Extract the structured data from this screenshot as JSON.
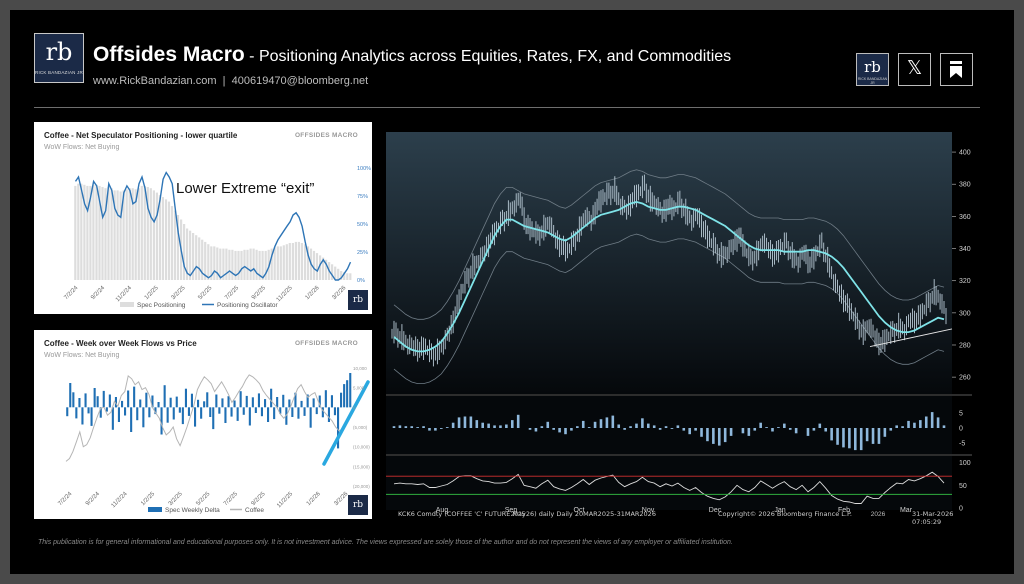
{
  "header": {
    "logo_text": "rb",
    "logo_caption": "RICK BANDAZIAN JR",
    "title_bold": "Offsides Macro",
    "title_rest": " - Positioning Analytics across Equities, Rates, FX, and Commodities",
    "website": "www.RickBandazian.com",
    "separator": "|",
    "email": "400619470@bloomberg.net",
    "icons": [
      "rb-logo-icon",
      "x-icon",
      "bookmark-icon"
    ]
  },
  "panel1": {
    "title": "Coffee - Net Speculator Positioning - lower quartile",
    "subtitle": "WoW Flows: Net Buying",
    "brand": "OFFSIDES MACRO",
    "annotation": "Lower Extreme “exit”",
    "logo_text": "rb"
  },
  "panel2": {
    "title": "Coffee - Week over Week Flows vs Price",
    "subtitle": "WoW Flows: Net Buying",
    "brand": "OFFSIDES MACRO",
    "logo_text": "rb"
  },
  "bloomberg": {
    "footer_left": "KCK6 Comdty (COFFEE 'C' FUTURE May26) daily Daily 20MAR2025-31MAR2026",
    "footer_mid": "Copyright© 2026 Bloomberg Finance L.P.",
    "footer_right": "31-Mar-2026 07:05:29"
  },
  "disclaimer": "This publication is for general informational and educational purposes only. It is not investment advice. The views expressed are solely those of the author and do not represent the views of any employer or affiliated institution.",
  "chart_data": [
    {
      "type": "bar",
      "title": "Coffee - Net Speculator Positioning - lower quartile",
      "x_ticks": [
        "7/2/24",
        "9/2/24",
        "11/2/24",
        "1/2/25",
        "3/2/25",
        "5/2/25",
        "7/2/25",
        "9/2/25",
        "11/2/25",
        "1/2/26",
        "3/2/26"
      ],
      "ylim": [
        0,
        100
      ],
      "y_ticks": [
        "0%",
        "25%",
        "50%",
        "75%",
        "100%"
      ],
      "legend": [
        "Spec Positioning",
        "Positioning Oscillator"
      ],
      "legend_position": "bottom",
      "series": [
        {
          "name": "Positioning Oscillator",
          "values": [
            88,
            92,
            80,
            68,
            62,
            74,
            88,
            84,
            70,
            56,
            62,
            86,
            80,
            64,
            58,
            56,
            78,
            84,
            80,
            68,
            70,
            86,
            92,
            82,
            64,
            56,
            52,
            58,
            72,
            90,
            96,
            92,
            86,
            64,
            42,
            26,
            12,
            6,
            4,
            8,
            12,
            10,
            6,
            4,
            2,
            4,
            8,
            6,
            2,
            4,
            6,
            8,
            6,
            4,
            6,
            10,
            12,
            10,
            8,
            10,
            6,
            4,
            2,
            6,
            12,
            22,
            30,
            36,
            40,
            44,
            48,
            52,
            58,
            60,
            56,
            48,
            34,
            22,
            14,
            10,
            8,
            14,
            18,
            14,
            8,
            4,
            0,
            0,
            2,
            6,
            10,
            16
          ]
        },
        {
          "name": "Spec Positioning",
          "values": [
            84,
            86,
            86,
            85,
            84,
            84,
            85,
            85,
            84,
            83,
            82,
            83,
            82,
            80,
            80,
            79,
            80,
            81,
            82,
            82,
            81,
            82,
            84,
            84,
            83,
            82,
            80,
            78,
            76,
            74,
            72,
            70,
            66,
            62,
            58,
            54,
            50,
            46,
            44,
            42,
            40,
            38,
            36,
            34,
            32,
            30,
            30,
            29,
            28,
            28,
            28,
            27,
            27,
            26,
            26,
            26,
            27,
            27,
            28,
            28,
            27,
            26,
            26,
            26,
            27,
            28,
            29,
            30,
            30,
            31,
            32,
            33,
            33,
            34,
            34,
            33,
            32,
            30,
            28,
            26,
            24,
            22,
            20,
            18,
            16,
            14,
            12,
            10,
            8,
            7,
            6,
            6
          ]
        }
      ]
    },
    {
      "type": "bar",
      "title": "Coffee - Week over Week Flows vs Price",
      "x_ticks": [
        "7/2/24",
        "9/2/24",
        "11/2/24",
        "1/2/25",
        "3/2/25",
        "5/2/25",
        "7/2/25",
        "9/2/25",
        "11/2/25",
        "1/2/26",
        "3/2/26"
      ],
      "y2_ticks": [
        "10,000",
        "5,000",
        "0",
        "(5,000)",
        "(10,000)",
        "(15,000)",
        "(20,000)"
      ],
      "legend": [
        "Spec Weekly Delta",
        "Coffee"
      ],
      "legend_position": "bottom",
      "series": [
        {
          "name": "Spec Weekly Delta",
          "values": [
            -2500,
            6800,
            4200,
            -3100,
            2600,
            -4800,
            3900,
            -1700,
            -5200,
            5400,
            3100,
            -2900,
            4600,
            -1200,
            3600,
            -6300,
            2900,
            -4100,
            1800,
            -2300,
            4700,
            -6900,
            5800,
            -3600,
            2200,
            -5600,
            4100,
            -2800,
            3300,
            -1900,
            1500,
            -7600,
            6200,
            -4300,
            2700,
            -3400,
            3000,
            -1500,
            -4700,
            5200,
            -2400,
            3800,
            -5400,
            2100,
            -3200,
            1700,
            4200,
            -2700,
            -6100,
            3600,
            -1800,
            2500,
            -4400,
            3100,
            -2600,
            1900,
            -3800,
            4500,
            -2100,
            3200,
            -5100,
            2800,
            -1600,
            3900,
            -2500,
            2300,
            -4100,
            5200,
            -3300,
            2900,
            -1800,
            3500,
            -4900,
            2200,
            -2700,
            4100,
            -3200,
            1800,
            -2400,
            3600,
            -5700,
            2500,
            -1900,
            3300,
            -2800,
            4800,
            -4100,
            3400,
            -2200,
            -11500,
            4100,
            6500,
            7600,
            9600
          ]
        },
        {
          "name": "Coffee",
          "values": [
            230,
            236,
            250,
            270,
            290,
            260,
            264,
            278,
            300,
            320,
            338,
            340,
            324,
            330,
            352,
            342,
            364,
            372,
            404,
            398,
            386,
            392,
            376,
            380,
            366,
            340,
            328,
            318,
            298,
            284,
            290,
            300,
            276,
            262,
            280,
            300,
            322,
            344,
            376,
            390,
            402,
            396,
            388,
            372,
            382,
            392,
            380,
            366,
            350,
            360,
            372,
            382,
            396,
            406,
            402,
            396,
            388,
            374,
            364,
            356,
            348,
            340,
            326,
            318,
            326,
            342,
            360,
            378,
            386,
            372,
            360,
            366,
            370,
            352,
            336,
            328,
            320,
            312,
            300,
            292,
            296,
            302
          ]
        }
      ]
    },
    {
      "type": "line",
      "title": "",
      "x_ticks": [
        "Aug",
        "Sep",
        "Oct",
        "Nov",
        "Dec",
        "Jan",
        "Feb",
        "Mar"
      ],
      "x_year_labels": [
        "2025",
        "2026"
      ],
      "y_ticks": [
        260,
        280,
        300,
        320,
        340,
        360,
        380,
        400
      ],
      "ylim": [
        252,
        410
      ],
      "sub_panels": [
        {
          "name": "histogram",
          "y_ticks": [
            5,
            0,
            -5
          ],
          "ylim": [
            -8,
            10
          ]
        },
        {
          "name": "oscillator",
          "y_ticks": [
            100,
            50,
            0
          ],
          "ylim": [
            0,
            110
          ]
        }
      ],
      "series": [
        {
          "name": "moving-average",
          "values": [
            285,
            282,
            279,
            277,
            276,
            276,
            277,
            279,
            282,
            287,
            293,
            300,
            308,
            316,
            324,
            332,
            340,
            348,
            354,
            358,
            358,
            356,
            354,
            353,
            352,
            351,
            350,
            348,
            346,
            345,
            347,
            350,
            353,
            356,
            359,
            361,
            362,
            363,
            364,
            366,
            368,
            369,
            368,
            366,
            365,
            364,
            364,
            365,
            366,
            366,
            365,
            364,
            362,
            360,
            358,
            356,
            354,
            351,
            348,
            345,
            342,
            340,
            339,
            339,
            339,
            339,
            338,
            338,
            338,
            338,
            339,
            339,
            338,
            337,
            335,
            332,
            328,
            323,
            318,
            313,
            308,
            303,
            298,
            294,
            291,
            289,
            288,
            288,
            289,
            291,
            293,
            295,
            297,
            296
          ]
        },
        {
          "name": "close",
          "values": [
            287,
            285,
            281,
            279,
            277,
            278,
            274,
            276,
            281,
            288,
            299,
            312,
            321,
            329,
            333,
            338,
            345,
            351,
            357,
            362,
            367,
            371,
            354,
            351,
            348,
            353,
            357,
            346,
            341,
            338,
            344,
            352,
            361,
            357,
            366,
            371,
            374,
            377,
            368,
            364,
            370,
            374,
            379,
            371,
            368,
            362,
            366,
            364,
            369,
            363,
            358,
            361,
            352,
            345,
            340,
            336,
            338,
            342,
            348,
            339,
            333,
            337,
            345,
            340,
            335,
            340,
            343,
            336,
            332,
            338,
            330,
            336,
            343,
            333,
            321,
            313,
            306,
            300,
            293,
            288,
            293,
            285,
            280,
            284,
            288,
            292,
            290,
            296,
            295,
            300,
            306,
            313,
            309,
            299
          ]
        }
      ]
    }
  ]
}
